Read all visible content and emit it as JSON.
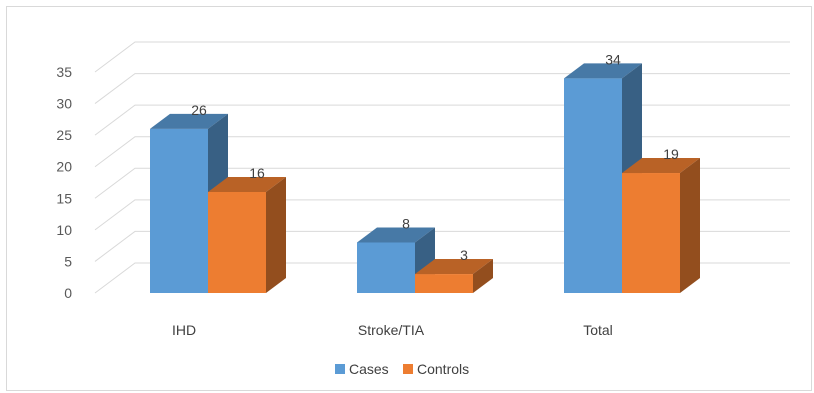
{
  "chart_data": {
    "type": "bar",
    "style": "3d-clustered-column",
    "categories": [
      "IHD",
      "Stroke/TIA",
      "Total"
    ],
    "series": [
      {
        "name": "Cases",
        "values": [
          26,
          8,
          34
        ],
        "color": "#5b9bd5"
      },
      {
        "name": "Controls",
        "values": [
          16,
          3,
          19
        ],
        "color": "#ed7d31"
      }
    ],
    "ylim": [
      0,
      35
    ],
    "yticks": [
      0,
      5,
      10,
      15,
      20,
      25,
      30,
      35
    ],
    "grid": true,
    "legend_position": "bottom"
  }
}
